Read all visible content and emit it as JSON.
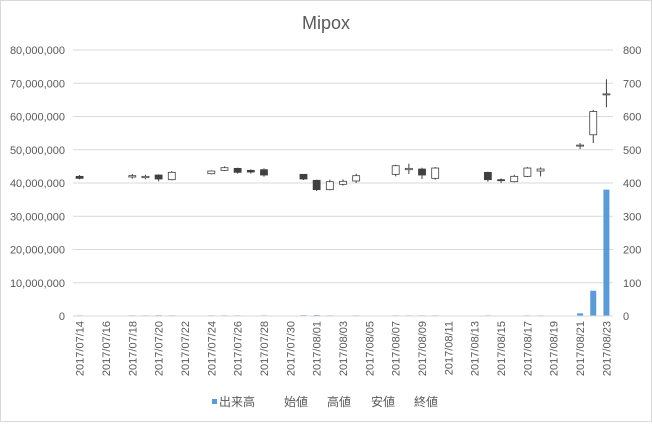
{
  "chart_data": {
    "type": "candlestick+bar",
    "title": "Mipox",
    "left_axis": {
      "ylim": [
        0,
        80000000
      ],
      "ticks": [
        "0",
        "10,000,000",
        "20,000,000",
        "30,000,000",
        "40,000,000",
        "50,000,000",
        "60,000,000",
        "70,000,000",
        "80,000,000"
      ]
    },
    "right_axis": {
      "ylim": [
        0,
        800
      ],
      "ticks": [
        "0",
        "100",
        "200",
        "300",
        "400",
        "500",
        "600",
        "700",
        "800"
      ]
    },
    "x_tick_labels": [
      "2017/07/14",
      "2017/07/16",
      "2017/07/18",
      "2017/07/20",
      "2017/07/22",
      "2017/07/24",
      "2017/07/26",
      "2017/07/28",
      "2017/07/30",
      "2017/08/01",
      "2017/08/03",
      "2017/08/05",
      "2017/08/07",
      "2017/08/09",
      "2017/08/11",
      "2017/08/13",
      "2017/08/15",
      "2017/08/17",
      "2017/08/19",
      "2017/08/21",
      "2017/08/23"
    ],
    "dates": [
      "2017/07/14",
      "2017/07/15",
      "2017/07/16",
      "2017/07/17",
      "2017/07/18",
      "2017/07/19",
      "2017/07/20",
      "2017/07/21",
      "2017/07/22",
      "2017/07/23",
      "2017/07/24",
      "2017/07/25",
      "2017/07/26",
      "2017/07/27",
      "2017/07/28",
      "2017/07/29",
      "2017/07/30",
      "2017/07/31",
      "2017/08/01",
      "2017/08/02",
      "2017/08/03",
      "2017/08/04",
      "2017/08/05",
      "2017/08/06",
      "2017/08/07",
      "2017/08/08",
      "2017/08/09",
      "2017/08/10",
      "2017/08/11",
      "2017/08/12",
      "2017/08/13",
      "2017/08/14",
      "2017/08/15",
      "2017/08/16",
      "2017/08/17",
      "2017/08/18",
      "2017/08/19",
      "2017/08/20",
      "2017/08/21",
      "2017/08/22",
      "2017/08/23"
    ],
    "candles": [
      {
        "date": "2017/07/14",
        "open": 420,
        "high": 424,
        "low": 411,
        "close": 414
      },
      {
        "date": "2017/07/18",
        "open": 418,
        "high": 427,
        "low": 413,
        "close": 422
      },
      {
        "date": "2017/07/19",
        "open": 416,
        "high": 425,
        "low": 411,
        "close": 420
      },
      {
        "date": "2017/07/20",
        "open": 424,
        "high": 426,
        "low": 405,
        "close": 412
      },
      {
        "date": "2017/07/21",
        "open": 410,
        "high": 436,
        "low": 408,
        "close": 432
      },
      {
        "date": "2017/07/24",
        "open": 428,
        "high": 438,
        "low": 426,
        "close": 436
      },
      {
        "date": "2017/07/25",
        "open": 438,
        "high": 450,
        "low": 436,
        "close": 446
      },
      {
        "date": "2017/07/26",
        "open": 444,
        "high": 446,
        "low": 428,
        "close": 432
      },
      {
        "date": "2017/07/27",
        "open": 438,
        "high": 441,
        "low": 428,
        "close": 433
      },
      {
        "date": "2017/07/28",
        "open": 440,
        "high": 444,
        "low": 419,
        "close": 424
      },
      {
        "date": "2017/07/31",
        "open": 426,
        "high": 427,
        "low": 409,
        "close": 412
      },
      {
        "date": "2017/08/01",
        "open": 408,
        "high": 410,
        "low": 376,
        "close": 380
      },
      {
        "date": "2017/08/02",
        "open": 380,
        "high": 410,
        "low": 378,
        "close": 404
      },
      {
        "date": "2017/08/03",
        "open": 396,
        "high": 411,
        "low": 392,
        "close": 405
      },
      {
        "date": "2017/08/04",
        "open": 406,
        "high": 428,
        "low": 400,
        "close": 422
      },
      {
        "date": "2017/08/07",
        "open": 426,
        "high": 455,
        "low": 420,
        "close": 452
      },
      {
        "date": "2017/08/08",
        "open": 440,
        "high": 458,
        "low": 427,
        "close": 444
      },
      {
        "date": "2017/08/09",
        "open": 442,
        "high": 446,
        "low": 412,
        "close": 424
      },
      {
        "date": "2017/08/10",
        "open": 414,
        "high": 448,
        "low": 410,
        "close": 445
      },
      {
        "date": "2017/08/14",
        "open": 432,
        "high": 434,
        "low": 404,
        "close": 410
      },
      {
        "date": "2017/08/15",
        "open": 410,
        "high": 414,
        "low": 400,
        "close": 408
      },
      {
        "date": "2017/08/16",
        "open": 404,
        "high": 425,
        "low": 402,
        "close": 420
      },
      {
        "date": "2017/08/17",
        "open": 420,
        "high": 448,
        "low": 418,
        "close": 445
      },
      {
        "date": "2017/08/18",
        "open": 436,
        "high": 447,
        "low": 420,
        "close": 442
      },
      {
        "date": "2017/08/21",
        "open": 512,
        "high": 520,
        "low": 502,
        "close": 514
      },
      {
        "date": "2017/08/22",
        "open": 545,
        "high": 620,
        "low": 520,
        "close": 615
      },
      {
        "date": "2017/08/23",
        "open": 665,
        "high": 712,
        "low": 628,
        "close": 668
      }
    ],
    "volume": [
      {
        "date": "2017/07/14",
        "value": 200000
      },
      {
        "date": "2017/07/18",
        "value": 200000
      },
      {
        "date": "2017/07/19",
        "value": 200000
      },
      {
        "date": "2017/07/20",
        "value": 250000
      },
      {
        "date": "2017/07/21",
        "value": 200000
      },
      {
        "date": "2017/07/24",
        "value": 200000
      },
      {
        "date": "2017/07/25",
        "value": 200000
      },
      {
        "date": "2017/07/26",
        "value": 200000
      },
      {
        "date": "2017/07/27",
        "value": 150000
      },
      {
        "date": "2017/07/28",
        "value": 200000
      },
      {
        "date": "2017/07/31",
        "value": 250000
      },
      {
        "date": "2017/08/01",
        "value": 300000
      },
      {
        "date": "2017/08/02",
        "value": 200000
      },
      {
        "date": "2017/08/03",
        "value": 150000
      },
      {
        "date": "2017/08/04",
        "value": 200000
      },
      {
        "date": "2017/08/07",
        "value": 200000
      },
      {
        "date": "2017/08/08",
        "value": 200000
      },
      {
        "date": "2017/08/09",
        "value": 200000
      },
      {
        "date": "2017/08/10",
        "value": 200000
      },
      {
        "date": "2017/08/14",
        "value": 200000
      },
      {
        "date": "2017/08/15",
        "value": 150000
      },
      {
        "date": "2017/08/16",
        "value": 150000
      },
      {
        "date": "2017/08/17",
        "value": 200000
      },
      {
        "date": "2017/08/18",
        "value": 200000
      },
      {
        "date": "2017/08/21",
        "value": 800000
      },
      {
        "date": "2017/08/22",
        "value": 7600000
      },
      {
        "date": "2017/08/23",
        "value": 38000000
      }
    ],
    "legend": [
      "出来高",
      "始値",
      "高値",
      "安値",
      "終値"
    ],
    "legend_position": "bottom",
    "grid": true,
    "colors": {
      "volume": "#5b9bd5",
      "candle_down": "#404040",
      "candle_up": "#ffffff",
      "candle_stroke": "#404040",
      "grid": "#d9d9d9",
      "text": "#595959"
    }
  }
}
